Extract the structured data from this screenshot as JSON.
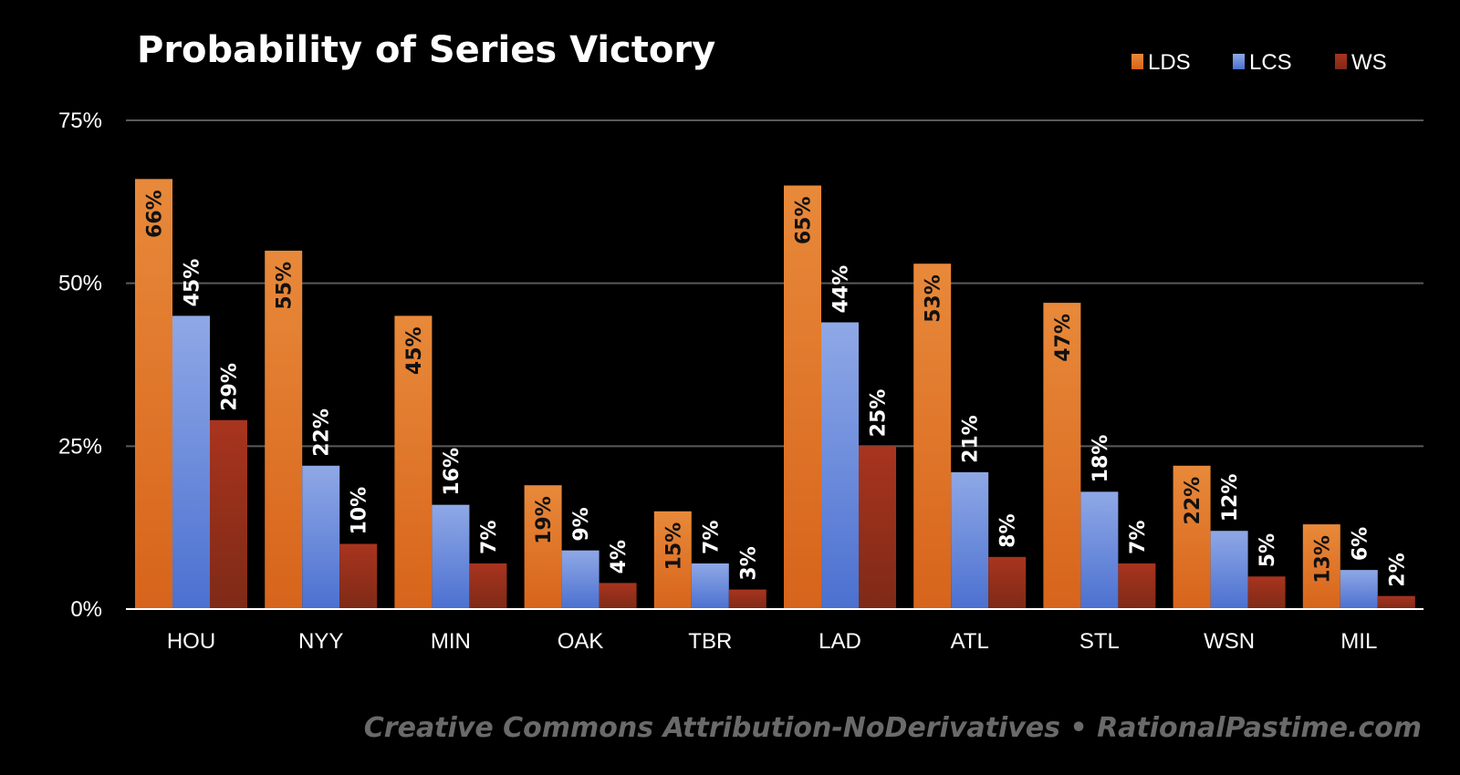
{
  "chart_data": {
    "type": "bar",
    "title": "Probability of Series Victory",
    "categories": [
      "HOU",
      "NYY",
      "MIN",
      "OAK",
      "TBR",
      "LAD",
      "ATL",
      "STL",
      "WSN",
      "MIL"
    ],
    "series": [
      {
        "name": "LDS",
        "values": [
          66,
          55,
          45,
          19,
          15,
          65,
          53,
          47,
          22,
          13
        ],
        "labels": [
          "66%",
          "55%",
          "45%",
          "19%",
          "15%",
          "65%",
          "53%",
          "47%",
          "22%",
          "13%"
        ]
      },
      {
        "name": "LCS",
        "values": [
          45,
          22,
          16,
          9,
          7,
          44,
          21,
          18,
          12,
          6
        ],
        "labels": [
          "45%",
          "22%",
          "16%",
          "9%",
          "7%",
          "44%",
          "21%",
          "18%",
          "12%",
          "6%"
        ]
      },
      {
        "name": "WS",
        "values": [
          29,
          10,
          7,
          4,
          3,
          25,
          8,
          7,
          5,
          2
        ],
        "labels": [
          "29%",
          "10%",
          "7%",
          "4%",
          "3%",
          "25%",
          "8%",
          "7%",
          "5%",
          "2%"
        ]
      }
    ],
    "yticks": [
      0,
      25,
      50,
      75
    ],
    "ytick_labels": [
      "0%",
      "25%",
      "50%",
      "75%"
    ],
    "ylim": [
      0,
      75
    ],
    "xlabel": "",
    "ylabel": "",
    "grid": true,
    "legend": "top-right",
    "colors": {
      "LDS": [
        "#e8893a",
        "#d7641b"
      ],
      "LCS": [
        "#8fa8e6",
        "#4b70d0"
      ],
      "WS": [
        "#a8341e",
        "#7e2a17"
      ]
    },
    "watermark": "Creative Commons Attribution-NoDerivatives  •  RationalPastime.com"
  }
}
